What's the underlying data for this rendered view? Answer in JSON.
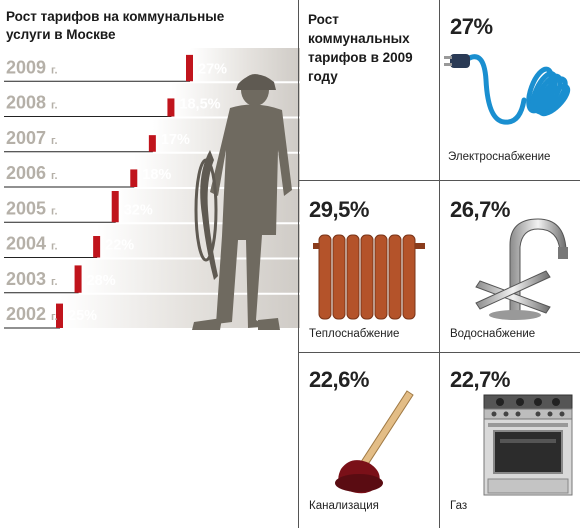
{
  "left_title": "Рост тарифов на коммунальные услуги в Москве",
  "chart_data": {
    "type": "bar",
    "title": "Рост тарифов на коммунальные услуги в Москве",
    "categories": [
      "2009 г.",
      "2008 г.",
      "2007 г.",
      "2006 г.",
      "2005 г.",
      "2004 г.",
      "2003 г.",
      "2002 г."
    ],
    "values": [
      27,
      18.5,
      17,
      18,
      32,
      22,
      28,
      25
    ],
    "labels": [
      "27%",
      "18,5%",
      "17%",
      "18%",
      "32%",
      "22%",
      "28%",
      "25%"
    ],
    "unit": "%"
  },
  "years": [
    "2009",
    "2008",
    "2007",
    "2006",
    "2005",
    "2004",
    "2003",
    "2002"
  ],
  "year_suffix": "г.",
  "right_title": "Рост коммунальных тарифов в 2009 году",
  "services": [
    {
      "pct": "27%",
      "label": "Электроснабжение",
      "icon": "power-cord-icon"
    },
    {
      "pct": "29,5%",
      "label": "Теплоснабжение",
      "icon": "radiator-icon"
    },
    {
      "pct": "26,7%",
      "label": "Водоснабжение",
      "icon": "faucet-icon"
    },
    {
      "pct": "22,6%",
      "label": "Канализация",
      "icon": "plunger-icon"
    },
    {
      "pct": "22,7%",
      "label": "Газ",
      "icon": "gas-stove-icon"
    }
  ],
  "colors": {
    "bar_red": "#c0141c",
    "step_gray": "#d9d6d2",
    "year_gray": "#b5b0a8",
    "worker": "#6f6a60"
  }
}
